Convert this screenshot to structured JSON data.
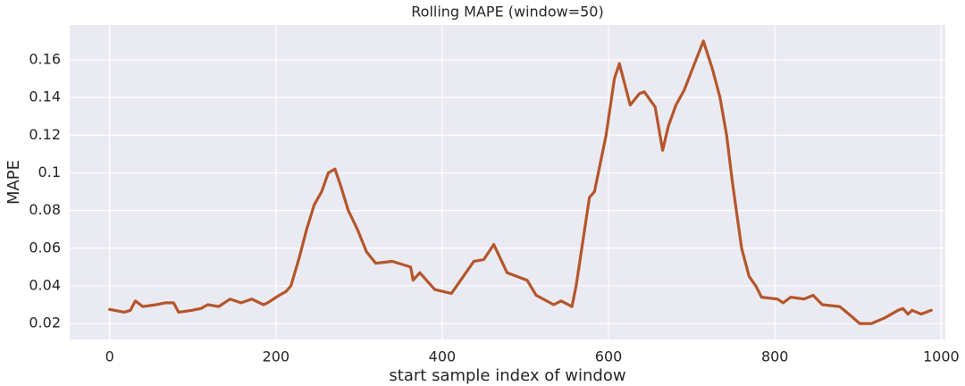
{
  "chart_data": {
    "type": "line",
    "title": "Rolling MAPE (window=50)",
    "xlabel": "start sample index of window",
    "ylabel": "MAPE",
    "color": "#b5562b",
    "grid": true,
    "xlim": [
      -48,
      1005
    ],
    "ylim": [
      0.0115,
      0.1785
    ],
    "xticks": [
      0,
      200,
      400,
      600,
      800,
      1000
    ],
    "yticks": [
      0.02,
      0.04,
      0.06,
      0.08,
      0.1,
      0.12,
      0.14,
      0.16
    ],
    "x": [
      0,
      18,
      25,
      31,
      40,
      56,
      67,
      77,
      83,
      99,
      110,
      118,
      131,
      145,
      158,
      171,
      185,
      190,
      204,
      212,
      218,
      228,
      237,
      246,
      255,
      263,
      271,
      278,
      287,
      298,
      309,
      320,
      340,
      362,
      365,
      373,
      391,
      411,
      438,
      450,
      462,
      478,
      502,
      513,
      534,
      543,
      556,
      561,
      577,
      583,
      597,
      607,
      613,
      626,
      637,
      643,
      656,
      665,
      672,
      681,
      691,
      699,
      714,
      725,
      734,
      742,
      749,
      760,
      769,
      777,
      784,
      803,
      810,
      819,
      835,
      846,
      857,
      878,
      889,
      902,
      916,
      932,
      948,
      954,
      960,
      965,
      976,
      988
    ],
    "values": [
      0.0275,
      0.026,
      0.027,
      0.032,
      0.029,
      0.03,
      0.031,
      0.031,
      0.026,
      0.027,
      0.028,
      0.03,
      0.029,
      0.033,
      0.031,
      0.033,
      0.03,
      0.031,
      0.035,
      0.037,
      0.04,
      0.055,
      0.07,
      0.083,
      0.09,
      0.1,
      0.102,
      0.093,
      0.08,
      0.07,
      0.058,
      0.052,
      0.053,
      0.05,
      0.043,
      0.047,
      0.038,
      0.036,
      0.053,
      0.054,
      0.062,
      0.047,
      0.043,
      0.035,
      0.03,
      0.032,
      0.029,
      0.04,
      0.087,
      0.09,
      0.12,
      0.15,
      0.158,
      0.136,
      0.142,
      0.143,
      0.135,
      0.112,
      0.125,
      0.136,
      0.144,
      0.153,
      0.17,
      0.155,
      0.14,
      0.12,
      0.095,
      0.06,
      0.045,
      0.04,
      0.034,
      0.033,
      0.031,
      0.034,
      0.033,
      0.035,
      0.03,
      0.029,
      0.025,
      0.02,
      0.02,
      0.023,
      0.027,
      0.028,
      0.025,
      0.027,
      0.025,
      0.027
    ]
  }
}
